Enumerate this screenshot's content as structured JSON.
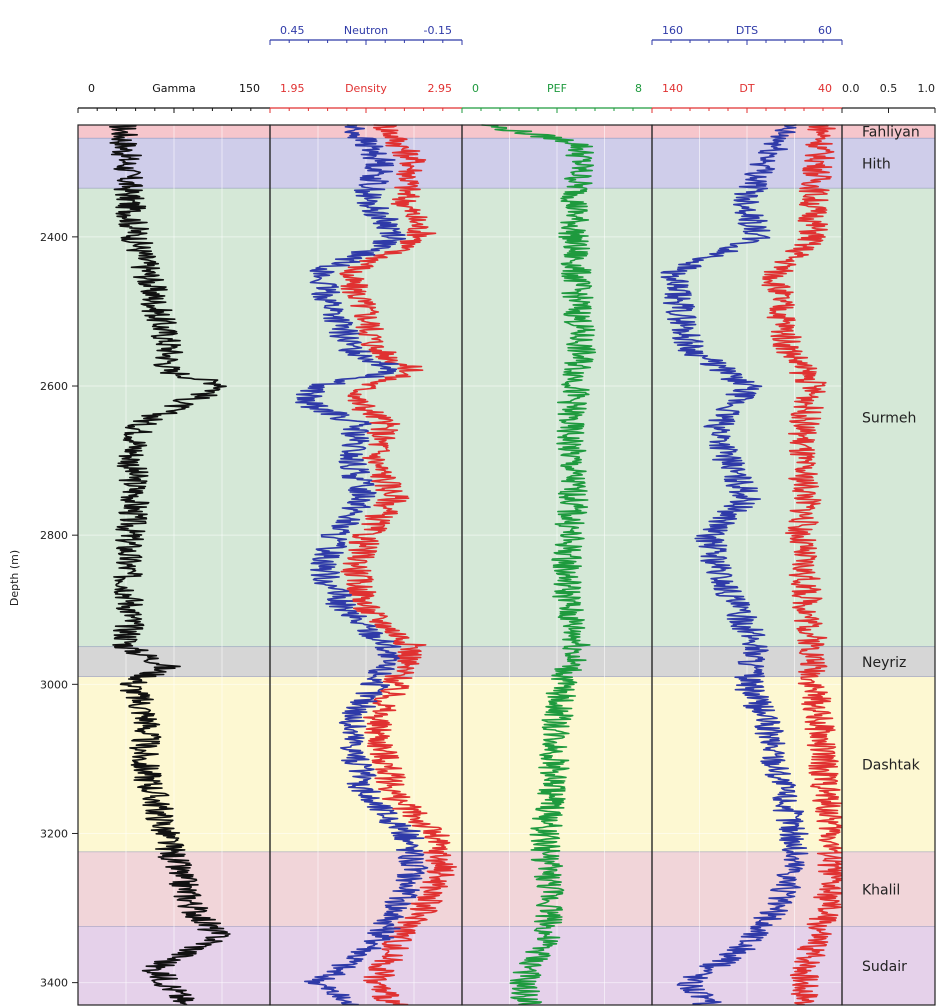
{
  "chart_data": {
    "type": "line",
    "y_axis": {
      "label": "Depth (m)",
      "range": [
        2250,
        3430
      ],
      "ticks": [
        "2400",
        "2600",
        "2800",
        "3000",
        "3200",
        "3400"
      ],
      "tick_values": [
        2400,
        2600,
        2800,
        3000,
        3200,
        3400
      ],
      "inverted": true
    },
    "tracks": [
      {
        "id": "gamma",
        "curves": [
          {
            "name": "Gamma",
            "color": "#111111",
            "scale": [
              0,
              150
            ],
            "scale_labels": [
              "0",
              "150"
            ],
            "depth": [
              2250,
              2300,
              2350,
              2400,
              2450,
              2500,
              2550,
              2580,
              2600,
              2620,
              2650,
              2700,
              2750,
              2800,
              2850,
              2900,
              2950,
              2975,
              3000,
              3050,
              3100,
              3150,
              3200,
              3250,
              3300,
              3340,
              3380,
              3420
            ],
            "values": [
              35,
              38,
              40,
              45,
              55,
              62,
              72,
              70,
              118,
              85,
              50,
              42,
              45,
              40,
              38,
              42,
              38,
              70,
              42,
              55,
              50,
              60,
              68,
              78,
              90,
              110,
              60,
              80
            ]
          }
        ]
      },
      {
        "id": "density-neutron",
        "curves": [
          {
            "name": "Density",
            "color": "#e03131",
            "scale": [
              1.95,
              2.95
            ],
            "scale_labels": [
              "1.95",
              "2.95"
            ],
            "depth": [
              2250,
              2300,
              2350,
              2400,
              2450,
              2500,
              2550,
              2580,
              2600,
              2620,
              2650,
              2700,
              2750,
              2800,
              2850,
              2900,
              2950,
              3000,
              3050,
              3100,
              3150,
              3200,
              3250,
              3300,
              3350,
              3400,
              3430
            ],
            "values": [
              2.55,
              2.7,
              2.65,
              2.75,
              2.35,
              2.45,
              2.5,
              2.7,
              2.45,
              2.4,
              2.55,
              2.5,
              2.6,
              2.45,
              2.4,
              2.45,
              2.7,
              2.6,
              2.5,
              2.55,
              2.6,
              2.8,
              2.85,
              2.75,
              2.6,
              2.5,
              2.6
            ]
          },
          {
            "name": "Neutron",
            "color": "#2f3aa8",
            "scale": [
              0.45,
              -0.15
            ],
            "scale_labels": [
              "0.45",
              "-0.15"
            ],
            "depth": [
              2250,
              2300,
              2350,
              2400,
              2450,
              2500,
              2550,
              2580,
              2600,
              2620,
              2650,
              2700,
              2750,
              2800,
              2850,
              2900,
              2950,
              3000,
              3050,
              3100,
              3150,
              3200,
              3250,
              3300,
              3350,
              3400,
              3430
            ],
            "values": [
              0.2,
              0.1,
              0.15,
              0.05,
              0.3,
              0.25,
              0.2,
              0.05,
              0.3,
              0.35,
              0.18,
              0.2,
              0.15,
              0.25,
              0.28,
              0.22,
              0.08,
              0.12,
              0.2,
              0.18,
              0.15,
              0.02,
              0.0,
              0.05,
              0.12,
              0.3,
              0.2
            ]
          }
        ]
      },
      {
        "id": "pef",
        "curves": [
          {
            "name": "PEF",
            "color": "#1e9a3e",
            "scale": [
              0,
              8
            ],
            "scale_labels": [
              "0",
              "8"
            ],
            "depth": [
              2250,
              2275,
              2300,
              2350,
              2400,
              2450,
              2500,
              2550,
              2600,
              2650,
              2700,
              2750,
              2800,
              2850,
              2900,
              2950,
              3000,
              3050,
              3100,
              3150,
              3200,
              3250,
              3300,
              3350,
              3400,
              3430
            ],
            "values": [
              1.0,
              5.0,
              5.0,
              4.8,
              4.7,
              4.8,
              4.9,
              5.0,
              4.8,
              4.5,
              4.6,
              4.7,
              4.5,
              4.4,
              4.5,
              4.9,
              4.2,
              4.0,
              3.9,
              3.8,
              3.5,
              3.6,
              3.8,
              3.4,
              2.5,
              2.8
            ]
          }
        ]
      },
      {
        "id": "sonic",
        "curves": [
          {
            "name": "DT",
            "color": "#e03131",
            "scale": [
              140,
              40
            ],
            "scale_labels": [
              "140",
              "40"
            ],
            "depth": [
              2250,
              2300,
              2350,
              2400,
              2450,
              2500,
              2550,
              2600,
              2650,
              2700,
              2750,
              2800,
              2850,
              2900,
              2950,
              3000,
              3050,
              3100,
              3150,
              3200,
              3250,
              3300,
              3350,
              3400,
              3430
            ],
            "values": [
              50,
              52,
              55,
              55,
              75,
              72,
              68,
              55,
              60,
              62,
              58,
              62,
              60,
              58,
              55,
              55,
              52,
              50,
              48,
              45,
              45,
              48,
              55,
              60,
              58
            ]
          },
          {
            "name": "DTS",
            "color": "#2f3aa8",
            "scale": [
              160,
              60
            ],
            "scale_labels": [
              "160",
              "60"
            ],
            "depth": [
              2250,
              2300,
              2350,
              2400,
              2450,
              2500,
              2550,
              2600,
              2650,
              2700,
              2750,
              2800,
              2850,
              2900,
              2950,
              3000,
              3050,
              3100,
              3150,
              3200,
              3250,
              3300,
              3350,
              3400,
              3430
            ],
            "values": [
              90,
              100,
              110,
              105,
              150,
              145,
              140,
              110,
              125,
              120,
              110,
              130,
              125,
              115,
              105,
              110,
              100,
              95,
              90,
              85,
              85,
              95,
              110,
              140,
              130
            ]
          }
        ]
      }
    ],
    "zone_track": {
      "scale": [
        0.0,
        1.0
      ],
      "ticks": [
        "0.0",
        "0.5",
        "1.0"
      ]
    },
    "formations": [
      {
        "name": "Fahliyan",
        "top": 2250,
        "base": 2268,
        "color": "#f6c6cc"
      },
      {
        "name": "Hith",
        "top": 2268,
        "base": 2335,
        "color": "#cfcdea"
      },
      {
        "name": "Surmeh",
        "top": 2335,
        "base": 2950,
        "color": "#d5e8d7"
      },
      {
        "name": "Neyriz",
        "top": 2950,
        "base": 2990,
        "color": "#d6d6d6"
      },
      {
        "name": "Dashtak",
        "top": 2990,
        "base": 3225,
        "color": "#fdf8d2"
      },
      {
        "name": "Khalil",
        "top": 3225,
        "base": 3325,
        "color": "#f1d5d9"
      },
      {
        "name": "Sudair",
        "top": 3325,
        "base": 3430,
        "color": "#e5d1ea"
      }
    ]
  }
}
